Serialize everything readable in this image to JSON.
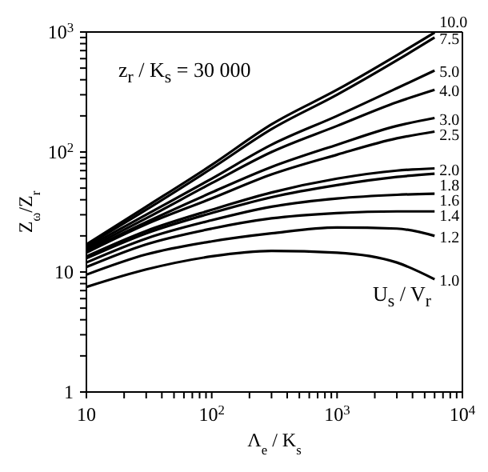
{
  "chart_data": {
    "type": "line",
    "xlabel": "Λ$_{e}$ / K$_{s}$",
    "ylabel": "Z$_{ω}$/Z$_{r}$",
    "log": "xy",
    "marker": "none",
    "line_style": "solid",
    "xlim": [
      10,
      10000
    ],
    "ylim": [
      1,
      1000
    ],
    "xticks": [
      10,
      {
        "value": 20,
        "label": null
      },
      {
        "value": 30,
        "label": null
      },
      {
        "value": 40,
        "label": null
      },
      {
        "value": 50,
        "label": null
      },
      {
        "value": 60,
        "label": null
      },
      {
        "value": 70,
        "label": null
      },
      {
        "value": 80,
        "label": null
      },
      {
        "value": 90,
        "label": null
      },
      {
        "value": 100,
        "label": "10$^{2}$"
      },
      {
        "value": 200,
        "label": null
      },
      {
        "value": 300,
        "label": null
      },
      {
        "value": 400,
        "label": null
      },
      {
        "value": 500,
        "label": null
      },
      {
        "value": 600,
        "label": null
      },
      {
        "value": 700,
        "label": null
      },
      {
        "value": 800,
        "label": null
      },
      {
        "value": 900,
        "label": null
      },
      {
        "value": 1000,
        "label": "10$^{3}$"
      },
      {
        "value": 2000,
        "label": null
      },
      {
        "value": 3000,
        "label": null
      },
      {
        "value": 4000,
        "label": null
      },
      {
        "value": 5000,
        "label": null
      },
      {
        "value": 6000,
        "label": null
      },
      {
        "value": 7000,
        "label": null
      },
      {
        "value": 8000,
        "label": null
      },
      {
        "value": 9000,
        "label": null
      },
      {
        "value": 10000,
        "label": "10$^{4}$"
      }
    ],
    "yticks": [
      1,
      {
        "value": 2,
        "label": null
      },
      {
        "value": 3,
        "label": null
      },
      {
        "value": 4,
        "label": null
      },
      {
        "value": 5,
        "label": null
      },
      {
        "value": 6,
        "label": null
      },
      {
        "value": 7,
        "label": null
      },
      {
        "value": 8,
        "label": null
      },
      {
        "value": 9,
        "label": null
      },
      10,
      {
        "value": 20,
        "label": null
      },
      {
        "value": 30,
        "label": null
      },
      {
        "value": 40,
        "label": null
      },
      {
        "value": 50,
        "label": null
      },
      {
        "value": 60,
        "label": null
      },
      {
        "value": 70,
        "label": null
      },
      {
        "value": 80,
        "label": null
      },
      {
        "value": 90,
        "label": null
      },
      {
        "value": 100,
        "label": "10$^{2}$"
      },
      {
        "value": 200,
        "label": null
      },
      {
        "value": 300,
        "label": null
      },
      {
        "value": 400,
        "label": null
      },
      {
        "value": 500,
        "label": null
      },
      {
        "value": 600,
        "label": null
      },
      {
        "value": 700,
        "label": null
      },
      {
        "value": 800,
        "label": null
      },
      {
        "value": 900,
        "label": null
      },
      {
        "value": 1000,
        "label": "10$^{3}$"
      }
    ],
    "x": [
      10,
      30,
      100,
      300,
      1000,
      3000,
      6000
    ],
    "annotations": [
      "z$_{r}$ / K$_{s}$ = 30 000",
      "U$_{s}$ / V$_{r}$"
    ],
    "series": [
      {
        "name": "10.0",
        "color": "#000000",
        "values": [
          17,
          35,
          78,
          170,
          330,
          640,
          990
        ]
      },
      {
        "name": "7.5",
        "color": "#000000",
        "values": [
          16.5,
          33,
          73,
          155,
          300,
          580,
          900
        ]
      },
      {
        "name": "5.0",
        "color": "#000000",
        "values": [
          16,
          30,
          60,
          115,
          200,
          340,
          478
        ]
      },
      {
        "name": "4.0",
        "color": "#000000",
        "values": [
          15.5,
          28,
          55,
          100,
          165,
          260,
          330
        ]
      },
      {
        "name": "3.0",
        "color": "#000000",
        "values": [
          15,
          26,
          46,
          75,
          115,
          165,
          192
        ]
      },
      {
        "name": "2.5",
        "color": "#000000",
        "values": [
          14.5,
          25,
          41,
          65,
          95,
          130,
          148
        ]
      },
      {
        "name": "2.0",
        "color": "#000000",
        "values": [
          13.5,
          22,
          33,
          46,
          60,
          70,
          73
        ]
      },
      {
        "name": "1.8",
        "color": "#000000",
        "values": [
          13,
          21,
          31,
          42,
          53,
          62,
          66
        ]
      },
      {
        "name": "1.6",
        "color": "#000000",
        "values": [
          12,
          19,
          27,
          35,
          41,
          44,
          45
        ]
      },
      {
        "name": "1.4",
        "color": "#000000",
        "values": [
          11,
          17,
          23,
          28,
          31,
          32,
          32
        ]
      },
      {
        "name": "1.2",
        "color": "#000000",
        "values": [
          9.5,
          14,
          18,
          21,
          23.5,
          23,
          20
        ]
      },
      {
        "name": "1.0",
        "color": "#000000",
        "values": [
          7.5,
          10.5,
          13.5,
          15,
          14.5,
          12,
          8.7
        ]
      }
    ]
  }
}
